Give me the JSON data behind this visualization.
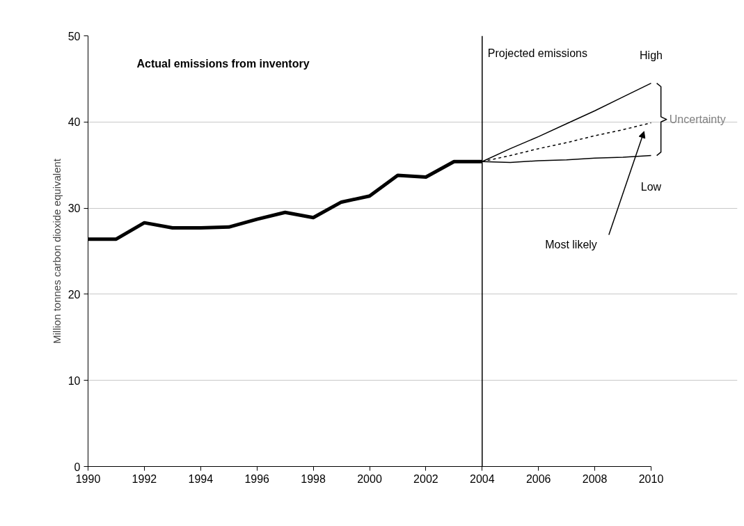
{
  "chart_data": {
    "type": "line",
    "ylabel": "Million tonnes carbon dioxide equivalent",
    "xlim": [
      1990,
      2010
    ],
    "xticks": [
      1990,
      1992,
      1994,
      1996,
      1998,
      2000,
      2002,
      2004,
      2006,
      2008,
      2010
    ],
    "ylim": [
      0,
      50
    ],
    "yticks": [
      0,
      10,
      20,
      30,
      40,
      50
    ],
    "grid": "y",
    "marker": "none",
    "series": [
      {
        "color": "#000000",
        "line_style": "solid",
        "x": [
          1990,
          1991,
          1992,
          1993,
          1994,
          1995,
          1996,
          1997,
          1998,
          1999,
          2000,
          2001,
          2002,
          2003,
          2004
        ],
        "values": [
          26.4,
          26.4,
          28.3,
          27.7,
          27.7,
          27.8,
          28.7,
          29.5,
          28.9,
          30.7,
          31.4,
          33.8,
          33.6,
          35.4,
          35.4
        ]
      },
      {
        "name": "High",
        "color": "#000000",
        "line_style": "solid",
        "x": [
          2004,
          2005,
          2006,
          2007,
          2008,
          2009,
          2010
        ],
        "values": [
          35.4,
          36.9,
          38.3,
          39.8,
          41.3,
          42.9,
          44.5
        ]
      },
      {
        "name": "Low",
        "color": "#000000",
        "line_style": "solid",
        "x": [
          2004,
          2005,
          2006,
          2007,
          2008,
          2009,
          2010
        ],
        "values": [
          35.4,
          35.3,
          35.5,
          35.6,
          35.8,
          35.9,
          36.1
        ]
      },
      {
        "name": "Most likely",
        "color": "#000000",
        "line_style": "dashed",
        "x": [
          2004,
          2005,
          2006,
          2007,
          2008,
          2009,
          2010
        ],
        "values": [
          35.4,
          36.1,
          36.9,
          37.6,
          38.4,
          39.1,
          39.9
        ]
      }
    ],
    "ref_lines": [
      {
        "axis": "x",
        "value": 2004,
        "color": "#000000"
      }
    ],
    "annotations": [
      "Projected emissions",
      "Uncertainty",
      "Actual emissions from inventory"
    ]
  }
}
